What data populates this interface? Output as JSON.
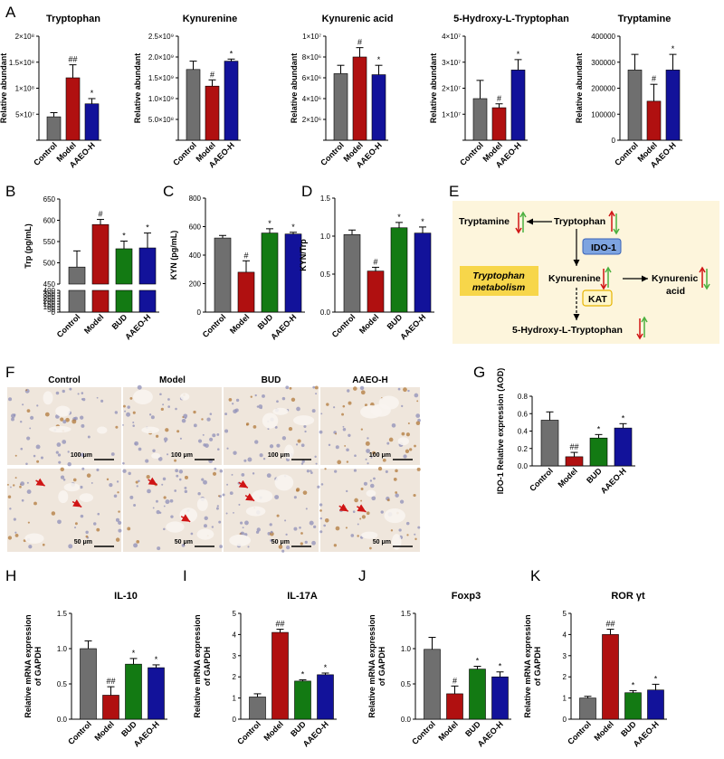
{
  "panel_letters": {
    "A": "A",
    "B": "B",
    "C": "C",
    "D": "D",
    "E": "E",
    "F": "F",
    "G": "G",
    "H": "H",
    "I": "I",
    "J": "J",
    "K": "K"
  },
  "colors": {
    "control": "#6f6f6f",
    "model": "#b01010",
    "bud": "#137a13",
    "aaeo": "#12129a"
  },
  "chart_data": [
    {
      "id": "A1",
      "type": "bar",
      "title": "Tryptophan",
      "ylabel": "Relative abundant",
      "categories": [
        "Control",
        "Model",
        "AAEO-H"
      ],
      "values": [
        45000000,
        120000000,
        70000000
      ],
      "errors": [
        8000000,
        25000000,
        10000000
      ],
      "ylim": [
        0,
        200000000
      ],
      "yticks": [
        0,
        50000000,
        100000000,
        150000000,
        200000000
      ],
      "ytick_labels": [
        "",
        "5×10⁷",
        "1×10⁸",
        "1.5×10⁸",
        "2×10⁸"
      ],
      "annotations": [
        "",
        "##",
        "*"
      ]
    },
    {
      "id": "A2",
      "type": "bar",
      "title": "Kynurenine",
      "ylabel": "Relative abundant",
      "categories": [
        "Control",
        "Model",
        "AAEO-H"
      ],
      "values": [
        1700000000,
        1300000000,
        1900000000
      ],
      "errors": [
        200000000,
        150000000,
        50000000
      ],
      "ylim": [
        0,
        2500000000
      ],
      "yticks": [
        0,
        500000000,
        1000000000,
        1500000000,
        2000000000,
        2500000000
      ],
      "ytick_labels": [
        "",
        "5.0×10⁸",
        "1.0×10⁹",
        "1.5×10⁹",
        "2.0×10⁹",
        "2.5×10⁹"
      ],
      "annotations": [
        "",
        "#",
        "*"
      ]
    },
    {
      "id": "A3",
      "type": "bar",
      "title": "Kynurenic acid",
      "ylabel": "Relative abundant",
      "categories": [
        "Control",
        "Model",
        "AAEO-H"
      ],
      "values": [
        6400000,
        8000000,
        6300000
      ],
      "errors": [
        800000,
        900000,
        900000
      ],
      "ylim": [
        0,
        10000000
      ],
      "yticks": [
        0,
        2000000,
        4000000,
        6000000,
        8000000,
        10000000
      ],
      "ytick_labels": [
        "",
        "2×10⁶",
        "4×10⁶",
        "6×10⁶",
        "8×10⁶",
        "1×10⁷"
      ],
      "annotations": [
        "",
        "#",
        "*"
      ]
    },
    {
      "id": "A4",
      "type": "bar",
      "title": "5-Hydroxy-L-Tryptophan",
      "ylabel": "Relative abundant",
      "categories": [
        "Control",
        "Model",
        "AAEO-H"
      ],
      "values": [
        16000000,
        12500000,
        27000000
      ],
      "errors": [
        7000000,
        1500000,
        4000000
      ],
      "ylim": [
        0,
        40000000
      ],
      "yticks": [
        0,
        10000000,
        20000000,
        30000000,
        40000000
      ],
      "ytick_labels": [
        "",
        "1×10⁷",
        "2×10⁷",
        "3×10⁷",
        "4×10⁷"
      ],
      "annotations": [
        "",
        "#",
        "*"
      ]
    },
    {
      "id": "A5",
      "type": "bar",
      "title": "Tryptamine",
      "ylabel": "Relative abundant",
      "categories": [
        "Control",
        "Model",
        "AAEO-H"
      ],
      "values": [
        270000,
        150000,
        270000
      ],
      "errors": [
        60000,
        65000,
        60000
      ],
      "ylim": [
        0,
        400000
      ],
      "yticks": [
        0,
        100000,
        200000,
        300000,
        400000
      ],
      "ytick_labels": [
        "0",
        "100000",
        "200000",
        "300000",
        "400000"
      ],
      "annotations": [
        "",
        "#",
        "*"
      ]
    },
    {
      "id": "B",
      "type": "bar",
      "title": "",
      "ylabel": "Trp (pg/mL)",
      "categories": [
        "Control",
        "Model",
        "BUD",
        "AAEO-H"
      ],
      "values": [
        490,
        590,
        533,
        535
      ],
      "errors": [
        38,
        12,
        18,
        35
      ],
      "broken_axis": true,
      "ylim": [
        0,
        650
      ],
      "yticks": [
        450,
        500,
        550,
        600,
        650,
        0,
        50,
        100,
        150,
        200,
        250,
        300,
        350,
        400
      ],
      "ytick_labels": [
        "450",
        "500",
        "550",
        "600",
        "650",
        "0",
        "50",
        "100",
        "150",
        "200",
        "250",
        "300",
        "350",
        "400"
      ],
      "annotations": [
        "",
        "#",
        "*",
        "*"
      ]
    },
    {
      "id": "C",
      "type": "bar",
      "title": "",
      "ylabel": "KYN (pg/mL)",
      "categories": [
        "Control",
        "Model",
        "BUD",
        "AAEO-H"
      ],
      "values": [
        520,
        280,
        555,
        548
      ],
      "errors": [
        18,
        80,
        30,
        12
      ],
      "ylim": [
        0,
        800
      ],
      "yticks": [
        0,
        200,
        400,
        600,
        800
      ],
      "ytick_labels": [
        "0",
        "200",
        "400",
        "600",
        "800"
      ],
      "annotations": [
        "",
        "#",
        "*",
        "*"
      ]
    },
    {
      "id": "D",
      "type": "bar",
      "title": "",
      "ylabel": "KYN/Trp",
      "categories": [
        "Control",
        "Model",
        "BUD",
        "AAEO-H"
      ],
      "values": [
        1.02,
        0.54,
        1.11,
        1.04
      ],
      "errors": [
        0.06,
        0.05,
        0.07,
        0.08
      ],
      "ylim": [
        0,
        1.5
      ],
      "yticks": [
        0,
        0.5,
        1.0,
        1.5
      ],
      "ytick_labels": [
        "0.0",
        "0.5",
        "1.0",
        "1.5"
      ],
      "annotations": [
        "",
        "#",
        "*",
        "*"
      ]
    },
    {
      "id": "G",
      "type": "bar",
      "title": "",
      "ylabel": "IDO-1 Relative expression (AOD)",
      "categories": [
        "Control",
        "Model",
        "BUD",
        "AAEO-H"
      ],
      "values": [
        0.525,
        0.105,
        0.32,
        0.435
      ],
      "errors": [
        0.095,
        0.05,
        0.04,
        0.05
      ],
      "ylim": [
        0,
        0.8
      ],
      "yticks": [
        0,
        0.2,
        0.4,
        0.6,
        0.8
      ],
      "ytick_labels": [
        "0.0",
        "0.2",
        "0.4",
        "0.6",
        "0.8"
      ],
      "annotations": [
        "",
        "##",
        "*",
        "*"
      ]
    },
    {
      "id": "H",
      "type": "bar",
      "title": "IL-10",
      "ylabel": "Relative mRNA expression\nof GAPDH",
      "categories": [
        "Control",
        "Model",
        "BUD",
        "AAEO-H"
      ],
      "values": [
        1.0,
        0.34,
        0.78,
        0.73
      ],
      "errors": [
        0.11,
        0.12,
        0.08,
        0.04
      ],
      "ylim": [
        0,
        1.5
      ],
      "yticks": [
        0,
        0.5,
        1.0,
        1.5
      ],
      "ytick_labels": [
        "0.0",
        "0.5",
        "1.0",
        "1.5"
      ],
      "annotations": [
        "",
        "##",
        "*",
        "*"
      ]
    },
    {
      "id": "I",
      "type": "bar",
      "title": "IL-17A",
      "ylabel": "Relative mRNA expression\nof GAPDH",
      "categories": [
        "Control",
        "Model",
        "BUD",
        "AAEO-H"
      ],
      "values": [
        1.05,
        4.1,
        1.8,
        2.1
      ],
      "errors": [
        0.15,
        0.15,
        0.06,
        0.08
      ],
      "ylim": [
        0,
        5
      ],
      "yticks": [
        0,
        1,
        2,
        3,
        4,
        5
      ],
      "ytick_labels": [
        "0",
        "1",
        "2",
        "3",
        "4",
        "5"
      ],
      "annotations": [
        "",
        "##",
        "*",
        "*"
      ]
    },
    {
      "id": "J",
      "type": "bar",
      "title": "Foxp3",
      "ylabel": "Relative mRNA expression\nof GAPDH",
      "categories": [
        "Control",
        "Model",
        "BUD",
        "AAEO-H"
      ],
      "values": [
        0.99,
        0.36,
        0.71,
        0.6
      ],
      "errors": [
        0.17,
        0.11,
        0.04,
        0.07
      ],
      "ylim": [
        0,
        1.5
      ],
      "yticks": [
        0,
        0.5,
        1.0,
        1.5
      ],
      "ytick_labels": [
        "0.0",
        "0.5",
        "1.0",
        "1.5"
      ],
      "annotations": [
        "",
        "#",
        "*",
        "*"
      ]
    },
    {
      "id": "K",
      "type": "bar",
      "title": "ROR γt",
      "ylabel": "Relative mRNA expression\nof GAPDH",
      "categories": [
        "Control",
        "Model",
        "BUD",
        "AAEO-H"
      ],
      "values": [
        1.0,
        4.0,
        1.25,
        1.38
      ],
      "errors": [
        0.08,
        0.25,
        0.1,
        0.27
      ],
      "ylim": [
        0,
        5
      ],
      "yticks": [
        0,
        1,
        2,
        3,
        4,
        5
      ],
      "ytick_labels": [
        "0",
        "1",
        "2",
        "3",
        "4",
        "5"
      ],
      "annotations": [
        "",
        "##",
        "*",
        "*"
      ]
    }
  ],
  "pathway": {
    "tryptamine": "Tryptamine",
    "tryptophan": "Tryptophan",
    "ido1": "IDO-1",
    "kynurenine": "Kynurenine",
    "kynurenic_acid_1": "Kynurenic",
    "kynurenic_acid_2": "acid",
    "kat": "KAT",
    "hydroxy": "5-Hydroxy-L-Tryptophan",
    "metab_1": "Tryptophan",
    "metab_2": "metabolism"
  },
  "micrographs": {
    "columns": [
      "Control",
      "Model",
      "BUD",
      "AAEO-H"
    ],
    "scale_top": [
      "100 μm",
      "100 μm",
      "100 μm",
      "100 μm"
    ],
    "scale_bottom": [
      "50 μm",
      "50 μm",
      "50 μm",
      "50 μm"
    ]
  }
}
